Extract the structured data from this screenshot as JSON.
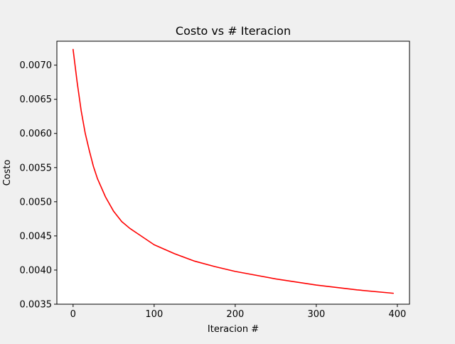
{
  "chart_data": {
    "type": "line",
    "title": "Costo vs # Iteracion",
    "xlabel": "Iteracion #",
    "ylabel": "Costo",
    "xlim": [
      -20,
      415
    ],
    "ylim": [
      0.0035,
      0.00735
    ],
    "xticks": [
      0,
      100,
      200,
      300,
      400
    ],
    "xtick_labels": [
      "0",
      "100",
      "200",
      "300",
      "400"
    ],
    "yticks": [
      0.0035,
      0.004,
      0.0045,
      0.005,
      0.0055,
      0.006,
      0.0065,
      0.007
    ],
    "ytick_labels": [
      "0.0035",
      "0.0040",
      "0.0045",
      "0.0050",
      "0.0055",
      "0.0060",
      "0.0065",
      "0.0070"
    ],
    "grid": false,
    "series": [
      {
        "color": "#ff0000",
        "x": [
          0,
          5,
          10,
          15,
          20,
          25,
          30,
          40,
          50,
          60,
          70,
          80,
          100,
          125,
          150,
          175,
          200,
          250,
          300,
          350,
          395
        ],
        "y": [
          0.00723,
          0.00675,
          0.00633,
          0.006,
          0.00575,
          0.00552,
          0.00534,
          0.00507,
          0.00486,
          0.00471,
          0.00461,
          0.00453,
          0.00437,
          0.00424,
          0.00413,
          0.00405,
          0.00398,
          0.00387,
          0.00378,
          0.00371,
          0.00366
        ]
      }
    ]
  }
}
